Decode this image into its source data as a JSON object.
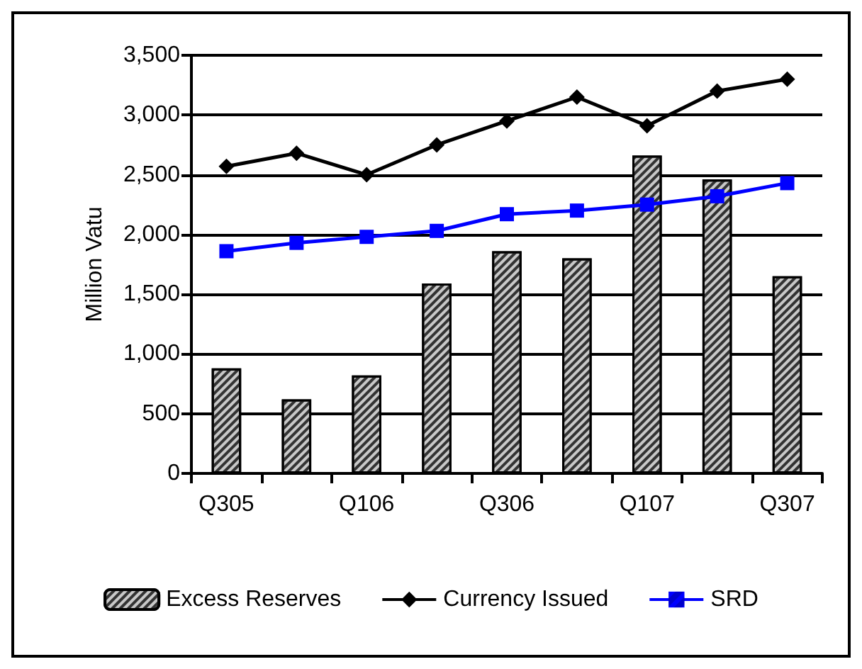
{
  "chart_data": {
    "type": "bar",
    "ylabel": "Million Vatu",
    "categories": [
      "Q305",
      null,
      "Q106",
      null,
      "Q306",
      null,
      "Q107",
      null,
      "Q307"
    ],
    "series": [
      {
        "name": "Excess Reserves",
        "color": "#c8c8c8",
        "values": [
          880,
          620,
          820,
          1590,
          1860,
          1800,
          2660,
          2460,
          1650
        ]
      },
      {
        "name": "Currency Issued",
        "type": "line",
        "color": "#000000",
        "marker": "diamond",
        "values": [
          2570,
          2680,
          2500,
          2750,
          2950,
          3150,
          2910,
          3200,
          3300
        ]
      },
      {
        "name": "SRD",
        "type": "line",
        "color": "#0000ff",
        "marker": "square",
        "values": [
          1860,
          1930,
          1980,
          2030,
          2170,
          2200,
          2250,
          2320,
          2430
        ]
      }
    ],
    "ylim": [
      0,
      3500
    ],
    "yticks": [
      0,
      500,
      {
        "value": 1000,
        "label": "1,000"
      },
      {
        "value": 1500,
        "label": "1,500"
      },
      {
        "value": 2000,
        "label": "2,000"
      },
      {
        "value": 2500,
        "label": "2,500"
      },
      {
        "value": 3000,
        "label": "3,000"
      },
      {
        "value": 3500,
        "label": "3,500"
      }
    ],
    "grid": "y",
    "legend": "bottom"
  }
}
